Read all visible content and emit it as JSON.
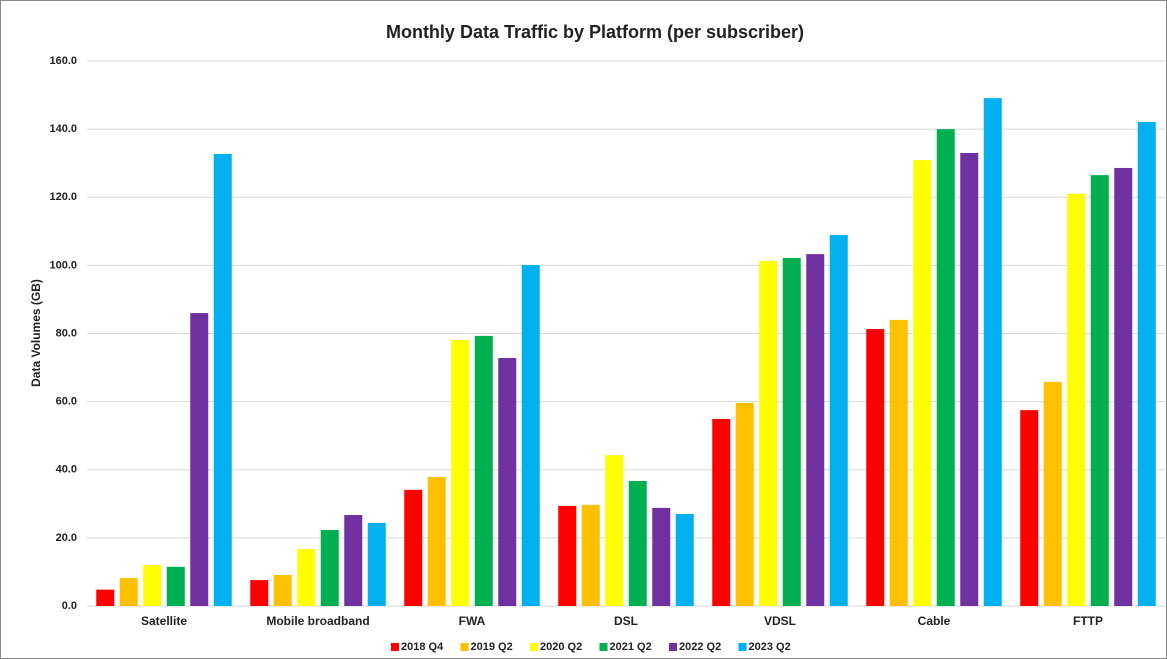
{
  "chart_data": {
    "type": "bar",
    "title": "Monthly Data Traffic by Platform (per subscriber)",
    "y_label": "Data Volumes (GB)",
    "categories": [
      "Satellite",
      "Mobile broadband",
      "FWA",
      "DSL",
      "VDSL",
      "Cable",
      "FTTP"
    ],
    "series": [
      {
        "name": "2018 Q4",
        "color": "#ff0000",
        "values": [
          4.8,
          7.6,
          34.1,
          29.4,
          54.9,
          81.3,
          57.5
        ]
      },
      {
        "name": "2019 Q2",
        "color": "#ffc000",
        "values": [
          8.2,
          9.1,
          37.9,
          29.7,
          59.6,
          84.0,
          65.8
        ]
      },
      {
        "name": "2020 Q2",
        "color": "#ffff00",
        "values": [
          12.0,
          16.7,
          78.1,
          44.3,
          101.3,
          130.9,
          121.0
        ]
      },
      {
        "name": "2021 Q2",
        "color": "#00b050",
        "values": [
          11.5,
          22.3,
          79.3,
          36.7,
          102.2,
          140.0,
          126.5
        ]
      },
      {
        "name": "2022 Q2",
        "color": "#7030a0",
        "values": [
          86.0,
          26.7,
          72.8,
          28.8,
          103.3,
          133.0,
          128.6
        ]
      },
      {
        "name": "2023 Q2",
        "color": "#00b0f0",
        "values": [
          132.7,
          24.4,
          100.1,
          27.0,
          108.9,
          149.1,
          142.1
        ]
      }
    ],
    "ylim": [
      0,
      160
    ],
    "yticks": [
      {
        "value": 0,
        "label": "0.0"
      },
      {
        "value": 20,
        "label": "20.0"
      },
      {
        "value": 40,
        "label": "40.0"
      },
      {
        "value": 60,
        "label": "60.0"
      },
      {
        "value": 80,
        "label": "80.0"
      },
      {
        "value": 100,
        "label": "100.0"
      },
      {
        "value": 120,
        "label": "120.0"
      },
      {
        "value": 140,
        "label": "140.0"
      },
      {
        "value": 160,
        "label": "160.0"
      }
    ],
    "grid": true,
    "legend": "bottom"
  }
}
